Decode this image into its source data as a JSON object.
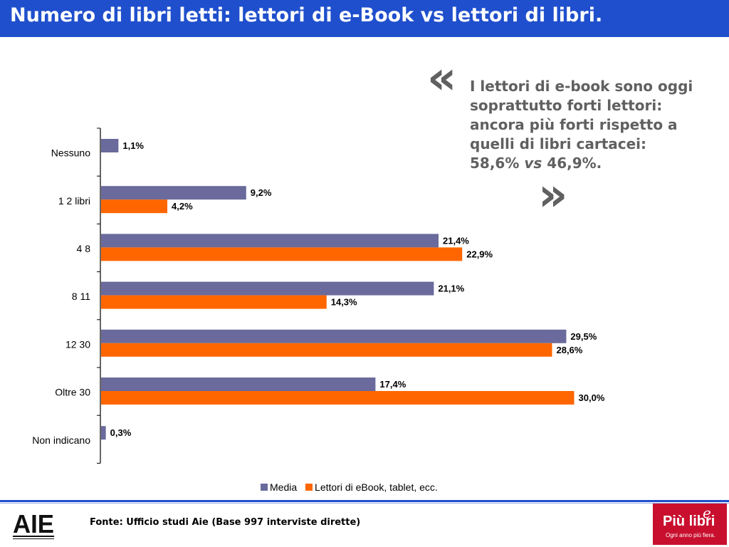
{
  "title": "Numero di libri letti: lettori di e-Book vs lettori di libri.",
  "quote": {
    "open_mark": "«",
    "close_mark": "»",
    "text_main": "I lettori di e-book sono oggi soprattutto forti lettori: ancora più forti rispetto a quelli di libri cartacei: 58,6% ",
    "text_italic": "vs",
    "text_end": " 46,9%."
  },
  "chart_data": {
    "type": "bar",
    "orientation": "horizontal",
    "categories": [
      "Nessuno",
      "1 2 libri",
      "4 8",
      "8 11",
      "12 30",
      "Oltre 30",
      "Non indicano"
    ],
    "series": [
      {
        "name": "Media",
        "color": "#6a6a9c",
        "values": [
          1.1,
          9.2,
          21.4,
          21.1,
          29.5,
          17.4,
          0.3
        ],
        "labels": [
          "1,1%",
          "9,2%",
          "21,4%",
          "21,1%",
          "29,5%",
          "17,4%",
          "0,3%"
        ]
      },
      {
        "name": "Lettori di eBook, tablet, ecc.",
        "color": "#ff6600",
        "values": [
          null,
          4.2,
          22.9,
          14.3,
          28.6,
          30.0,
          null
        ],
        "labels": [
          "",
          "4,2%",
          "22,9%",
          "14,3%",
          "28,6%",
          "30,0%",
          ""
        ]
      }
    ],
    "xlim": [
      0,
      30
    ],
    "legend_position": "bottom",
    "grid": false
  },
  "footer": {
    "source": "Fonte: Ufficio studi Aie (Base 997 interviste dirette)",
    "aie_logo": "AIE",
    "piu_logo": {
      "main": "Più libri",
      "superscript": "e",
      "tagline": "Ogni anno più fiera."
    }
  }
}
